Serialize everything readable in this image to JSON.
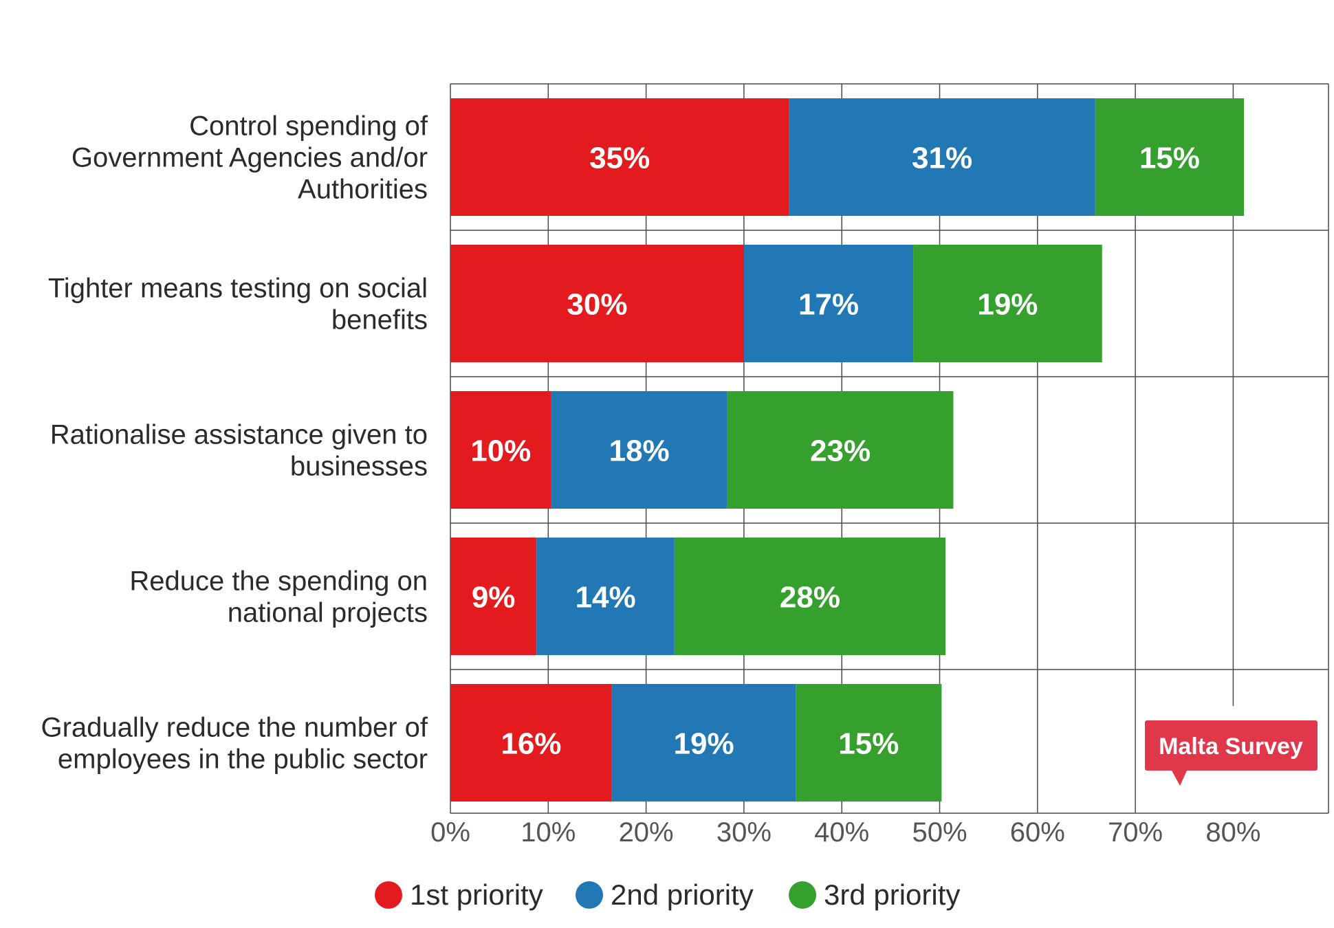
{
  "chart_data": {
    "type": "bar",
    "orientation": "horizontal",
    "stacked": true,
    "categories": [
      [
        "Control spending of",
        "Government Agencies and/or",
        "Authorities"
      ],
      [
        "Tighter means testing on social",
        "benefits"
      ],
      [
        "Rationalise assistance given to",
        "businesses"
      ],
      [
        "Reduce the spending on",
        "national projects"
      ],
      [
        "Gradually reduce the number of",
        "employees in the public sector"
      ]
    ],
    "series": [
      {
        "name": "1st priority",
        "color": "#e31b1f",
        "values": [
          34.6,
          30.0,
          10.3,
          8.8,
          16.5
        ],
        "labels": [
          "35%",
          "30%",
          "10%",
          "9%",
          "16%"
        ]
      },
      {
        "name": "2nd priority",
        "color": "#2178b4",
        "values": [
          31.3,
          17.3,
          18.0,
          14.1,
          18.8
        ],
        "labels": [
          "31%",
          "17%",
          "18%",
          "14%",
          "19%"
        ]
      },
      {
        "name": "3rd priority",
        "color": "#36a02e",
        "values": [
          15.2,
          19.3,
          23.1,
          27.7,
          14.9
        ],
        "labels": [
          "15%",
          "19%",
          "23%",
          "28%",
          "15%"
        ]
      }
    ],
    "xlim": [
      0,
      90
    ],
    "xticks": [
      0,
      10,
      20,
      30,
      40,
      50,
      60,
      70,
      80
    ],
    "xtick_labels": [
      "0%",
      "10%",
      "20%",
      "30%",
      "40%",
      "50%",
      "60%",
      "70%",
      "80%"
    ],
    "grid": true,
    "legend_position": "bottom-center"
  },
  "badge": {
    "text": "Malta Survey",
    "color": "#e0374a"
  }
}
